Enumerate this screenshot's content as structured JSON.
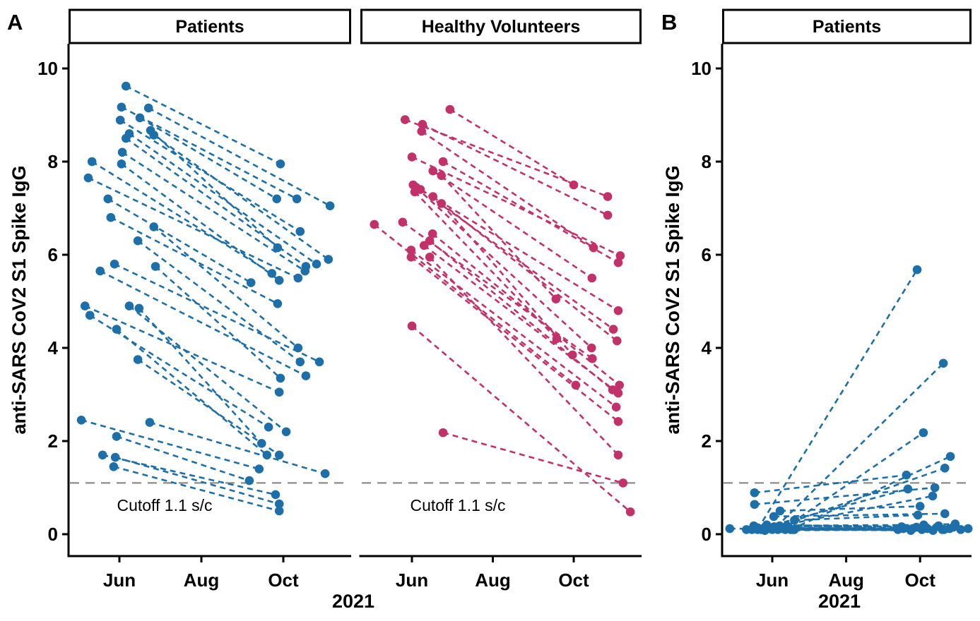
{
  "figure": {
    "panel_a_label": "A",
    "panel_b_label": "B",
    "y_axis_title": "anti-SARS CoV2 S1 Spike IgG",
    "x_axis_title": "2021",
    "colors": {
      "patients": "#1C6FA8",
      "healthy_volunteers": "#C3316A",
      "cutoff_line": "#8C8C8C",
      "axis": "#000000",
      "strip_background": "#FFFFFF",
      "strip_border": "#000000"
    }
  },
  "chart_data": [
    {
      "type": "line",
      "panel": "A",
      "facet_title": "Patients",
      "series_name": "Patients",
      "ylabel": "anti-SARS CoV2 S1 Spike IgG",
      "xlabel": "2021",
      "ylim": [
        0,
        10
      ],
      "y_ticks": [
        0,
        2,
        4,
        6,
        8,
        10
      ],
      "x_ticks": [
        "Jun",
        "Aug",
        "Oct"
      ],
      "x_tick_months": [
        6,
        8,
        10
      ],
      "cutoff_value": 1.1,
      "cutoff_label": "Cutoff 1.1 s/c",
      "pairs_format": [
        "month_visit1",
        "igG_visit1",
        "month_visit2",
        "igG_visit2"
      ],
      "pairs": [
        [
          6.16,
          9.62,
          9.93,
          7.95
        ],
        [
          6.71,
          9.15,
          11.14,
          7.05
        ],
        [
          6.05,
          9.17,
          10.33,
          7.2
        ],
        [
          6.5,
          8.94,
          9.84,
          7.2
        ],
        [
          6.02,
          8.89,
          10.41,
          6.5
        ],
        [
          6.76,
          8.67,
          9.86,
          6.15
        ],
        [
          6.84,
          8.57,
          11.1,
          5.9
        ],
        [
          6.24,
          8.6,
          10.81,
          5.8
        ],
        [
          6.16,
          8.5,
          10.55,
          5.75
        ],
        [
          6.07,
          8.2,
          10.53,
          5.65
        ],
        [
          5.33,
          8.0,
          9.72,
          5.6
        ],
        [
          6.05,
          7.95,
          9.9,
          5.45
        ],
        [
          5.24,
          7.65,
          10.36,
          5.5
        ],
        [
          5.72,
          7.2,
          9.21,
          5.4
        ],
        [
          5.79,
          6.8,
          9.86,
          4.95
        ],
        [
          6.84,
          6.6,
          10.36,
          4.0
        ],
        [
          6.45,
          6.3,
          10.41,
          3.7
        ],
        [
          5.88,
          5.8,
          10.88,
          3.7
        ],
        [
          5.53,
          5.65,
          10.55,
          3.4
        ],
        [
          6.88,
          5.75,
          9.93,
          3.35
        ],
        [
          5.16,
          4.9,
          9.9,
          3.05
        ],
        [
          5.28,
          4.7,
          9.64,
          2.3
        ],
        [
          6.24,
          4.9,
          10.07,
          2.2
        ],
        [
          6.48,
          4.85,
          9.47,
          1.95
        ],
        [
          5.93,
          4.4,
          9.6,
          1.7
        ],
        [
          6.45,
          3.75,
          9.9,
          1.7
        ],
        [
          5.07,
          2.45,
          9.41,
          1.4
        ],
        [
          6.74,
          2.4,
          11.02,
          1.3
        ],
        [
          5.93,
          2.1,
          9.17,
          1.15
        ],
        [
          5.59,
          1.7,
          9.81,
          0.85
        ],
        [
          5.9,
          1.65,
          9.9,
          0.65
        ],
        [
          5.86,
          1.45,
          9.9,
          0.5
        ]
      ]
    },
    {
      "type": "line",
      "panel": "A",
      "facet_title": "Healthy Volunteers",
      "series_name": "Healthy Volunteers",
      "ylabel": "anti-SARS CoV2 S1 Spike IgG",
      "xlabel": "2021",
      "ylim": [
        0,
        10
      ],
      "y_ticks": [
        0,
        2,
        4,
        6,
        8,
        10
      ],
      "x_ticks": [
        "Jun",
        "Aug",
        "Oct"
      ],
      "x_tick_months": [
        6,
        8,
        10
      ],
      "cutoff_value": 1.1,
      "cutoff_label": "Cutoff 1.1 s/c",
      "pairs_format": [
        "month_visit1",
        "igG_visit1",
        "month_visit2",
        "igG_visit2"
      ],
      "pairs": [
        [
          6.94,
          9.12,
          10.0,
          7.5
        ],
        [
          5.83,
          8.9,
          10.84,
          7.25
        ],
        [
          6.26,
          8.8,
          10.84,
          6.85
        ],
        [
          6.24,
          8.65,
          10.49,
          6.15
        ],
        [
          6.0,
          8.1,
          11.15,
          5.98
        ],
        [
          6.77,
          8.0,
          11.1,
          5.83
        ],
        [
          6.52,
          7.8,
          10.45,
          5.5
        ],
        [
          6.73,
          7.7,
          9.56,
          5.05
        ],
        [
          6.03,
          7.5,
          11.1,
          4.8
        ],
        [
          6.1,
          7.45,
          10.44,
          4.0
        ],
        [
          6.21,
          7.4,
          10.98,
          4.4
        ],
        [
          6.07,
          7.35,
          9.58,
          4.2
        ],
        [
          6.52,
          7.25,
          11.07,
          4.15
        ],
        [
          6.73,
          7.1,
          9.97,
          3.85
        ],
        [
          5.77,
          6.7,
          10.46,
          3.77
        ],
        [
          5.07,
          6.65,
          10.05,
          3.2
        ],
        [
          6.51,
          6.45,
          11.13,
          3.2
        ],
        [
          6.44,
          6.3,
          10.96,
          3.1
        ],
        [
          6.3,
          6.2,
          11.1,
          3.03
        ],
        [
          5.98,
          6.1,
          11.05,
          2.73
        ],
        [
          5.98,
          5.95,
          11.1,
          2.42
        ],
        [
          6.44,
          5.95,
          11.1,
          1.7
        ],
        [
          6.0,
          4.47,
          11.4,
          0.48
        ],
        [
          6.77,
          2.18,
          11.22,
          1.1
        ]
      ]
    },
    {
      "type": "line",
      "panel": "B",
      "facet_title": "Patients",
      "series_name": "Patients",
      "ylabel": "anti-SARS CoV2 S1 Spike IgG",
      "xlabel": "2021",
      "ylim": [
        0,
        10
      ],
      "y_ticks": [
        0,
        2,
        4,
        6,
        8,
        10
      ],
      "x_ticks": [
        "Jun",
        "Aug",
        "Oct"
      ],
      "x_tick_months": [
        6,
        8,
        10
      ],
      "cutoff_value": 1.1,
      "pairs_format": [
        "month_visit1",
        "igG_visit1",
        "month_visit2",
        "igG_visit2"
      ],
      "pairs": [
        [
          5.6,
          0.1,
          9.92,
          5.68
        ],
        [
          6.1,
          0.15,
          10.63,
          3.67
        ],
        [
          6.3,
          0.12,
          10.09,
          2.18
        ],
        [
          6.5,
          0.1,
          10.82,
          1.67
        ],
        [
          6.0,
          0.12,
          10.67,
          1.42
        ],
        [
          5.52,
          0.89,
          9.63,
          1.27
        ],
        [
          5.52,
          0.64,
          10.4,
          1.0
        ],
        [
          5.8,
          0.15,
          9.67,
          0.97
        ],
        [
          6.2,
          0.18,
          10.34,
          0.82
        ],
        [
          6.21,
          0.5,
          10.0,
          0.6
        ],
        [
          6.04,
          0.38,
          10.67,
          0.44
        ],
        [
          6.6,
          0.3,
          9.94,
          0.41
        ],
        [
          4.85,
          0.12,
          9.4,
          0.1
        ],
        [
          5.45,
          0.1,
          9.55,
          0.12
        ],
        [
          5.6,
          0.14,
          9.75,
          0.08
        ],
        [
          5.7,
          0.1,
          9.9,
          0.15
        ],
        [
          5.8,
          0.08,
          10.05,
          0.1
        ],
        [
          5.9,
          0.12,
          10.2,
          0.12
        ],
        [
          6.0,
          0.1,
          10.35,
          0.08
        ],
        [
          6.05,
          0.16,
          10.5,
          0.18
        ],
        [
          6.15,
          0.1,
          10.65,
          0.1
        ],
        [
          6.25,
          0.12,
          10.8,
          0.12
        ],
        [
          6.35,
          0.1,
          10.95,
          0.22
        ],
        [
          6.45,
          0.14,
          11.1,
          0.1
        ],
        [
          6.55,
          0.1,
          11.3,
          0.12
        ],
        [
          5.5,
          0.18,
          10.1,
          0.2
        ],
        [
          5.85,
          0.2,
          9.5,
          0.16
        ],
        [
          6.4,
          0.18,
          10.9,
          0.15
        ],
        [
          5.3,
          0.1,
          10.6,
          0.1
        ],
        [
          6.6,
          0.1,
          9.8,
          0.12
        ]
      ]
    }
  ]
}
